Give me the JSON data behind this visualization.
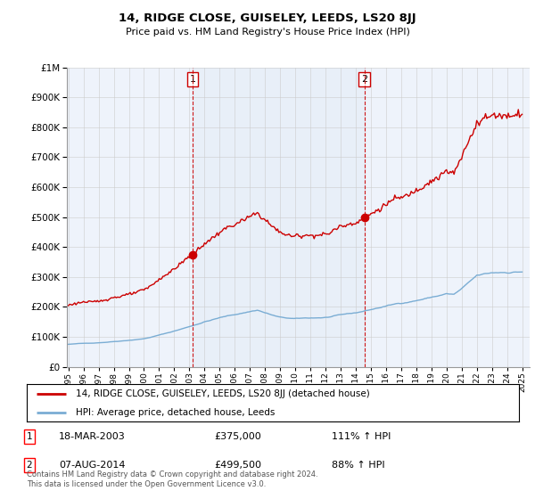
{
  "title": "14, RIDGE CLOSE, GUISELEY, LEEDS, LS20 8JJ",
  "subtitle": "Price paid vs. HM Land Registry's House Price Index (HPI)",
  "legend_line1": "14, RIDGE CLOSE, GUISELEY, LEEDS, LS20 8JJ (detached house)",
  "legend_line2": "HPI: Average price, detached house, Leeds",
  "sale1_date": "18-MAR-2003",
  "sale1_price": "£375,000",
  "sale1_hpi": "111% ↑ HPI",
  "sale1_year": 2003.205,
  "sale1_value": 375000,
  "sale2_date": "07-AUG-2014",
  "sale2_price": "£499,500",
  "sale2_hpi": "88% ↑ HPI",
  "sale2_year": 2014.58,
  "sale2_value": 499500,
  "property_color": "#cc0000",
  "hpi_color": "#7aadd4",
  "shade_color": "#dde8f5",
  "vline_color": "#cc0000",
  "background_color": "#ffffff",
  "plot_bg_color": "#eef3fb",
  "grid_color": "#cccccc",
  "ylim_min": 0,
  "ylim_max": 1000000,
  "xlim_min": 1994.9,
  "xlim_max": 2025.5,
  "footnote": "Contains HM Land Registry data © Crown copyright and database right 2024.\nThis data is licensed under the Open Government Licence v3.0."
}
